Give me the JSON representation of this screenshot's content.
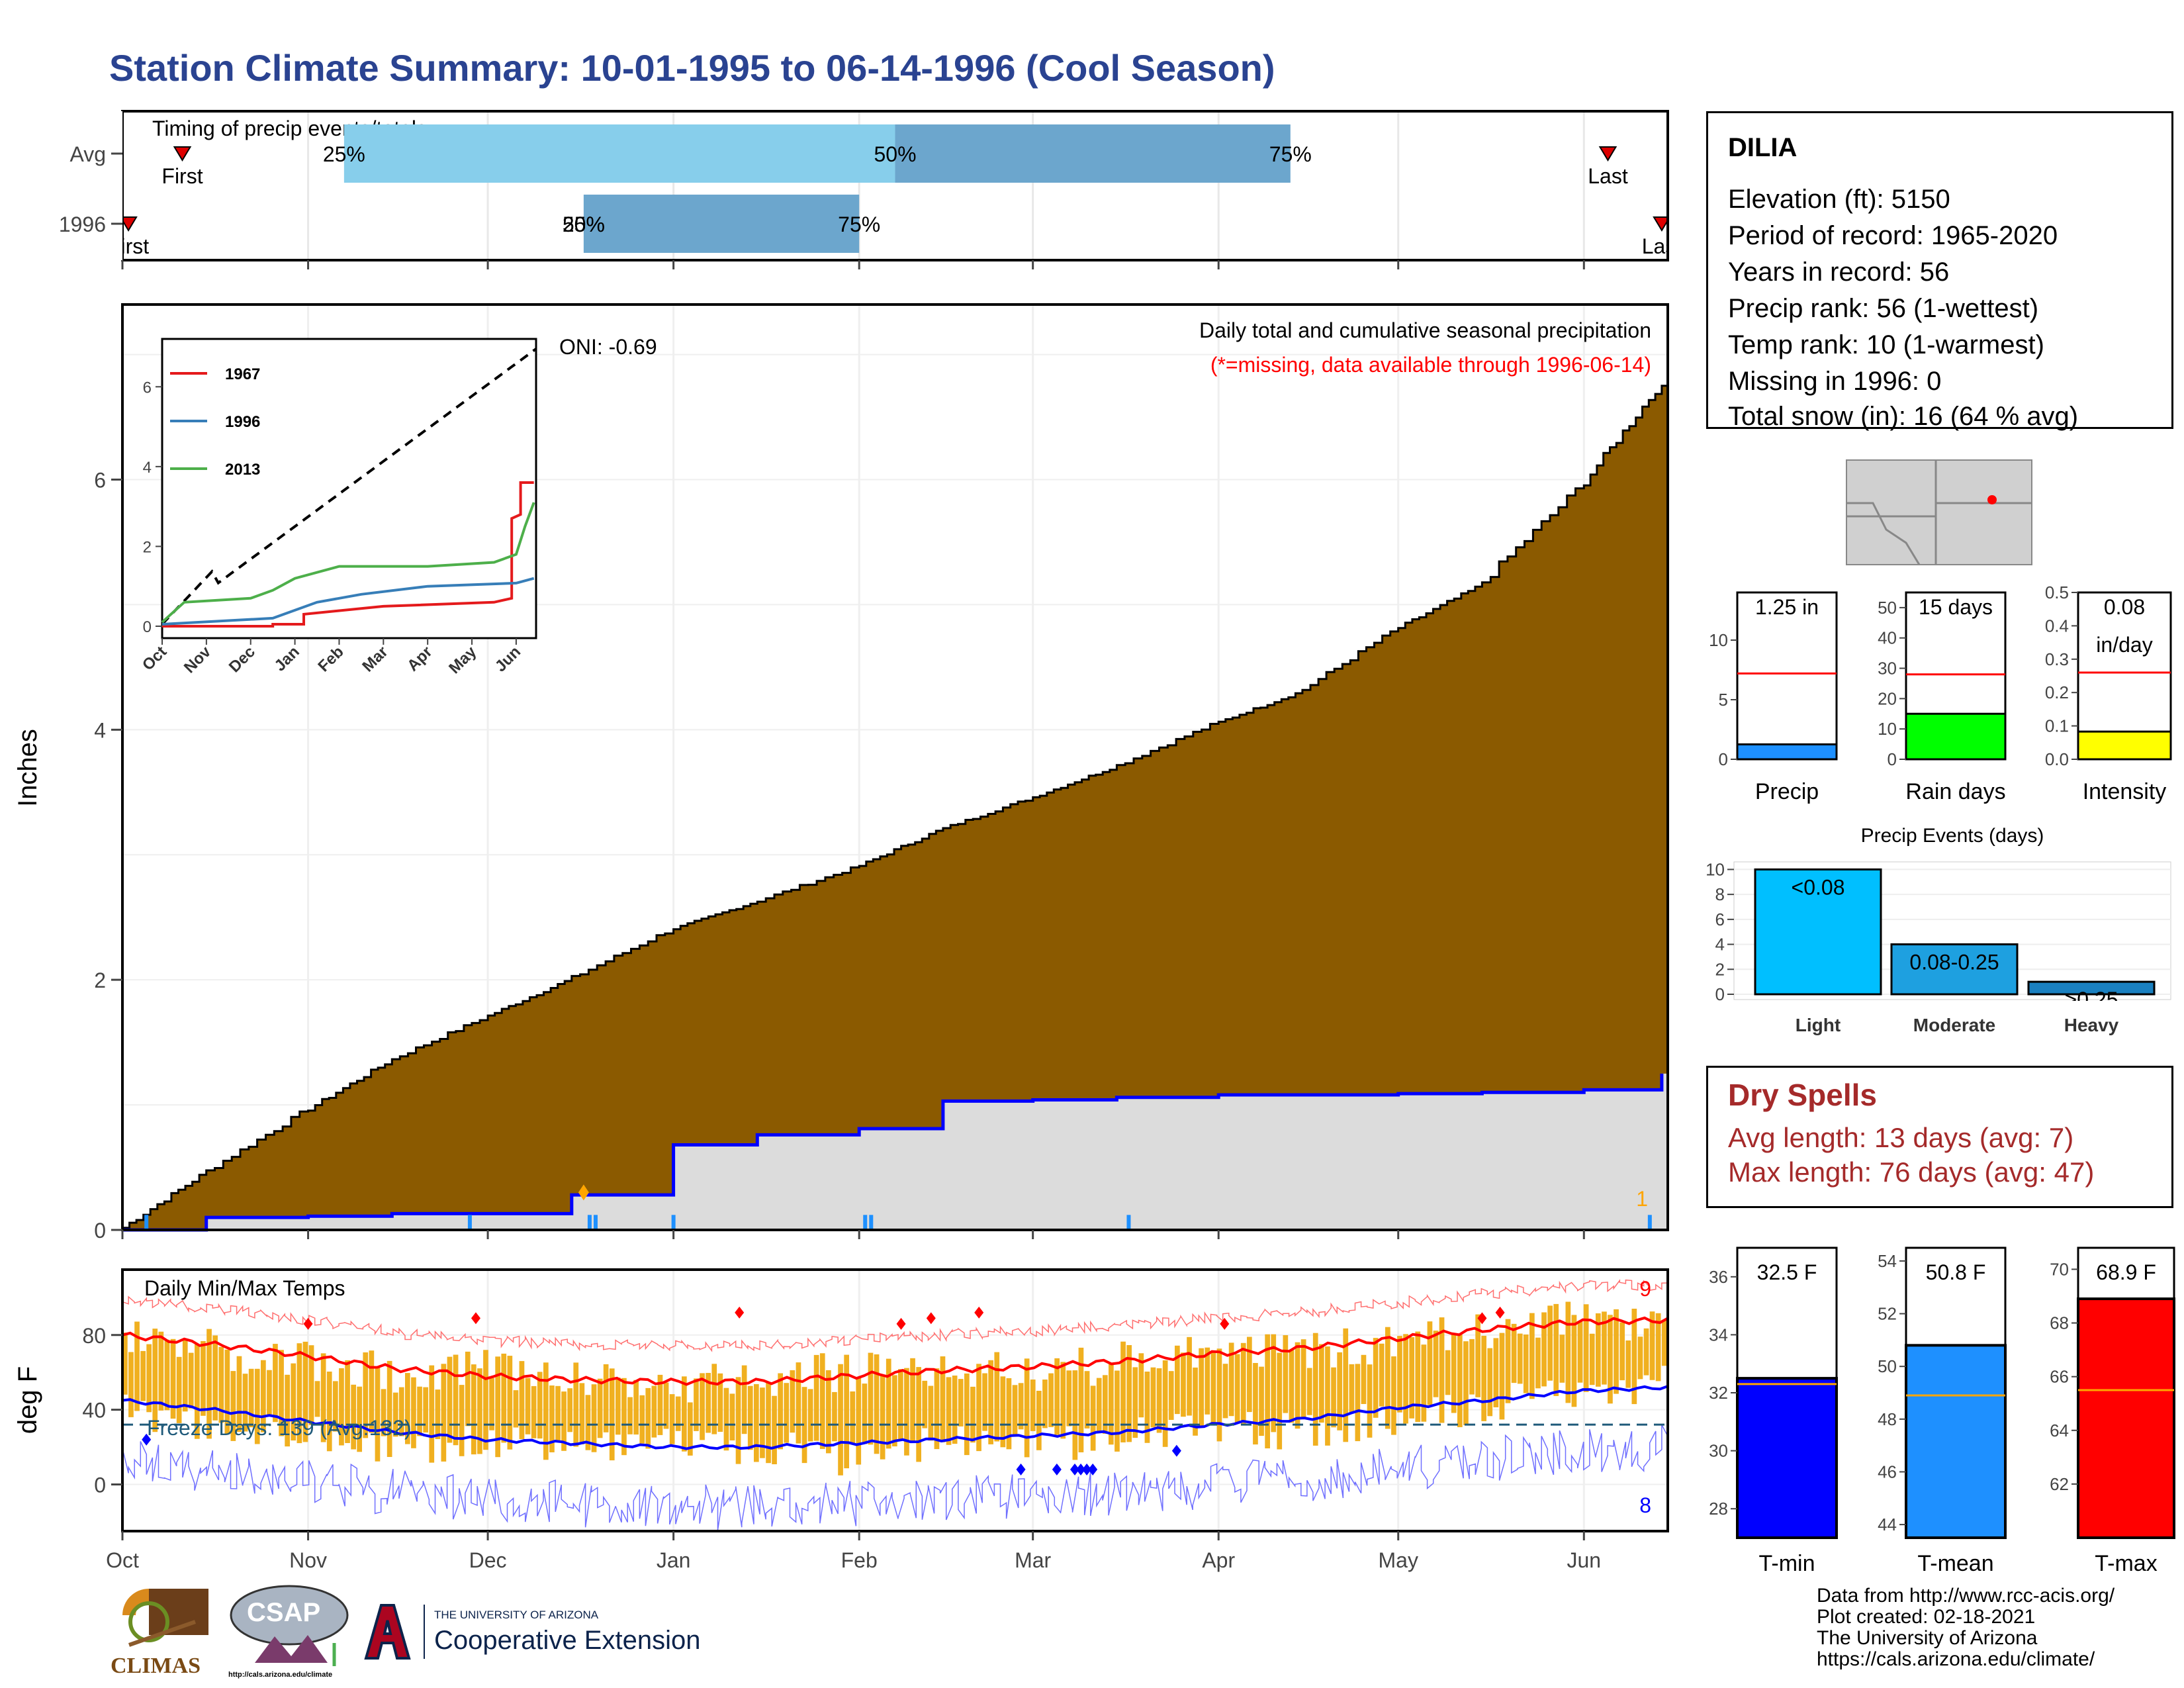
{
  "title": "Station Climate Summary: 10-01-1995 to 06-14-1996 (Cool Season)",
  "colors": {
    "title": "#2a4391",
    "precip_fill": "#8b5a00",
    "current_fill": "#dcdcdc",
    "current_line": "#0000ff",
    "temp_bar": "#f0b020",
    "tmax": "#ff0000",
    "tmin": "#0000ff",
    "dry": "#a52a2a"
  },
  "timing": {
    "label": "Timing of precip events/totals",
    "rows": [
      {
        "label": "Avg",
        "first": "First",
        "last": "Last",
        "pct": [
          "25%",
          "50%",
          "75%"
        ],
        "p25": "1995-11-07",
        "p50": "1996-02-07",
        "p75": "1996-04-13",
        "first_date": "1995-10-11",
        "last_date": "1996-06-05"
      },
      {
        "label": "1996",
        "first": "First",
        "last": "Last",
        "pct": [
          "25%",
          "50%",
          "75%"
        ],
        "p25": "1995-12-17",
        "p50": "1995-12-17",
        "p75": "1996-02-01",
        "first_date": "1995-10-02",
        "last_date": "1996-06-14"
      }
    ]
  },
  "precip_chart": {
    "ylabel": "Inches",
    "oni": "ONI: -0.69",
    "subtitle": "Daily total and cumulative seasonal precipitation",
    "missing_note": "(*=missing, data available through 1996-06-14)",
    "missing_count": "1",
    "yticks": [
      "0",
      "2",
      "4",
      "6"
    ],
    "ylim": [
      0,
      7.4
    ]
  },
  "inset": {
    "yticks": [
      "0",
      "2",
      "4",
      "6"
    ],
    "months": [
      "Oct",
      "Nov",
      "Dec",
      "Jan",
      "Feb",
      "Mar",
      "Apr",
      "May",
      "Jun"
    ],
    "legend": [
      {
        "name": "1967",
        "color": "#e41a1c"
      },
      {
        "name": "1996",
        "color": "#377eb8"
      },
      {
        "name": "2013",
        "color": "#4daf4a"
      }
    ]
  },
  "chart_data": [
    {
      "type": "area",
      "title": "Daily total and cumulative seasonal precipitation",
      "ylabel": "Inches",
      "ylim": [
        0,
        7.4
      ],
      "x": [
        "1995-10-01",
        "1995-10-15",
        "1995-11-01",
        "1995-11-15",
        "1995-12-01",
        "1995-12-15",
        "1996-01-01",
        "1996-01-15",
        "1996-02-01",
        "1996-02-15",
        "1996-03-01",
        "1996-03-15",
        "1996-04-01",
        "1996-04-15",
        "1996-05-01",
        "1996-05-15",
        "1996-06-01",
        "1996-06-14"
      ],
      "series": [
        {
          "name": "average cumulative",
          "values": [
            0.0,
            0.45,
            0.95,
            1.35,
            1.7,
            2.0,
            2.4,
            2.62,
            2.9,
            3.2,
            3.45,
            3.7,
            4.05,
            4.3,
            4.8,
            5.15,
            5.95,
            6.75
          ]
        },
        {
          "name": "1996 cumulative",
          "values": [
            0.0,
            0.1,
            0.11,
            0.13,
            0.13,
            0.28,
            0.68,
            0.76,
            0.81,
            1.03,
            1.04,
            1.06,
            1.08,
            1.08,
            1.09,
            1.1,
            1.12,
            1.25
          ]
        }
      ]
    },
    {
      "type": "bar",
      "title": "Daily Min/Max Temps",
      "ylabel": "deg F",
      "ylim": [
        -25,
        115
      ],
      "freeze_days": "Freeze Days: 139 (Avg:132)",
      "record_high_count": "9",
      "record_low_count": "8",
      "yticks": [
        "0",
        "40",
        "80"
      ],
      "x": [
        "1995-10-01",
        "1995-10-15",
        "1995-11-01",
        "1995-11-15",
        "1995-12-01",
        "1995-12-15",
        "1996-01-01",
        "1996-01-15",
        "1996-02-01",
        "1996-02-15",
        "1996-03-01",
        "1996-03-15",
        "1996-04-01",
        "1996-04-15",
        "1996-05-01",
        "1996-05-15",
        "1996-06-01",
        "1996-06-14"
      ],
      "series": [
        {
          "name": "avg max",
          "values": [
            80,
            75,
            69,
            62,
            58,
            56,
            55,
            55,
            58,
            61,
            63,
            66,
            70,
            73,
            78,
            83,
            87,
            88
          ]
        },
        {
          "name": "avg min",
          "values": [
            45,
            40,
            34,
            28,
            24,
            22,
            20,
            20,
            22,
            24,
            26,
            28,
            32,
            35,
            41,
            45,
            50,
            52
          ]
        },
        {
          "name": "daily max",
          "values": [
            78,
            72,
            66,
            60,
            62,
            58,
            52,
            58,
            60,
            63,
            58,
            66,
            72,
            70,
            76,
            82,
            90,
            86
          ]
        },
        {
          "name": "daily min",
          "values": [
            40,
            32,
            28,
            20,
            24,
            18,
            22,
            20,
            14,
            24,
            20,
            26,
            30,
            28,
            36,
            42,
            50,
            54
          ]
        }
      ]
    }
  ],
  "months": [
    "Oct",
    "Nov",
    "Dec",
    "Jan",
    "Feb",
    "Mar",
    "Apr",
    "May",
    "Jun"
  ],
  "temp_chart": {
    "title": "Daily Min/Max Temps",
    "ylabel": "deg F",
    "freeze": "Freeze Days: 139 (Avg:132)",
    "hi_count": "9",
    "lo_count": "8",
    "yticks": [
      "0",
      "40",
      "80"
    ]
  },
  "station": {
    "name": "DILIA",
    "lines": [
      "Elevation (ft): 5150",
      "Period of record: 1965-2020",
      "Years in record: 56",
      "Precip rank: 56 (1-wettest)",
      "Temp rank: 10 (1-warmest)",
      "Missing in 1996: 0",
      "Total snow (in): 16 (64 % avg)"
    ]
  },
  "mini_bars": [
    {
      "label": "Precip",
      "value_text": "1.25 in",
      "value": 1.25,
      "avg": 7.2,
      "max": 14,
      "yticks": [
        "0",
        "5",
        "10"
      ],
      "color": "#1e90ff"
    },
    {
      "label": "Rain days",
      "value_text": "15 days",
      "value": 15,
      "avg": 28,
      "max": 55,
      "yticks": [
        "0",
        "10",
        "20",
        "30",
        "40",
        "50"
      ],
      "color": "#00ff00"
    },
    {
      "label": "Intensity",
      "value_text": "0.08",
      "value_text2": "in/day",
      "value": 0.083,
      "avg": 0.26,
      "max": 0.5,
      "yticks": [
        "0.0",
        "0.1",
        "0.2",
        "0.3",
        "0.4",
        "0.5"
      ],
      "color": "#ffff00"
    }
  ],
  "events": {
    "title": "Precip Events (days)",
    "yticks": [
      "0",
      "2",
      "4",
      "6",
      "8",
      "10"
    ],
    "bars": [
      {
        "label": "Light",
        "bar_text": "<0.08",
        "value": 10,
        "color": "#00bfff"
      },
      {
        "label": "Moderate",
        "bar_text": "0.08-0.25",
        "value": 4,
        "color": "#1ea0e0"
      },
      {
        "label": "Heavy",
        "bar_text": ">0.25",
        "value": 1,
        "color": "#1a80c0"
      }
    ]
  },
  "dry_spells": {
    "title": "Dry Spells",
    "avg": "Avg length: 13 days (avg: 7)",
    "max": "Max length: 76 days (avg: 47)"
  },
  "temp_bars": [
    {
      "label": "T-min",
      "value_text": "32.5 F",
      "value": 32.5,
      "avg": 32.3,
      "min": 27,
      "max": 37,
      "yticks": [
        "28",
        "30",
        "32",
        "34",
        "36"
      ],
      "color": "#0000ff"
    },
    {
      "label": "T-mean",
      "value_text": "50.8 F",
      "value": 50.8,
      "avg": 48.9,
      "min": 43.5,
      "max": 54.5,
      "yticks": [
        "44",
        "46",
        "48",
        "50",
        "52",
        "54"
      ],
      "color": "#1e90ff"
    },
    {
      "label": "T-max",
      "value_text": "68.9 F",
      "value": 68.9,
      "avg": 65.5,
      "min": 60,
      "max": 70.8,
      "yticks": [
        "62",
        "64",
        "66",
        "68",
        "70"
      ],
      "color": "#ff0000"
    }
  ],
  "footer": [
    "Data from http://www.rcc-acis.org/",
    "Plot created: 02-18-2021",
    "The University of Arizona",
    "https://cals.arizona.edu/climate/"
  ],
  "logos": {
    "climas": "CLIMAS",
    "csap": "CSAP",
    "ua_small": "THE UNIVERSITY OF ARIZONA",
    "ua_big": "Cooperative Extension",
    "csap_url": "http://cals.arizona.edu/climate"
  }
}
